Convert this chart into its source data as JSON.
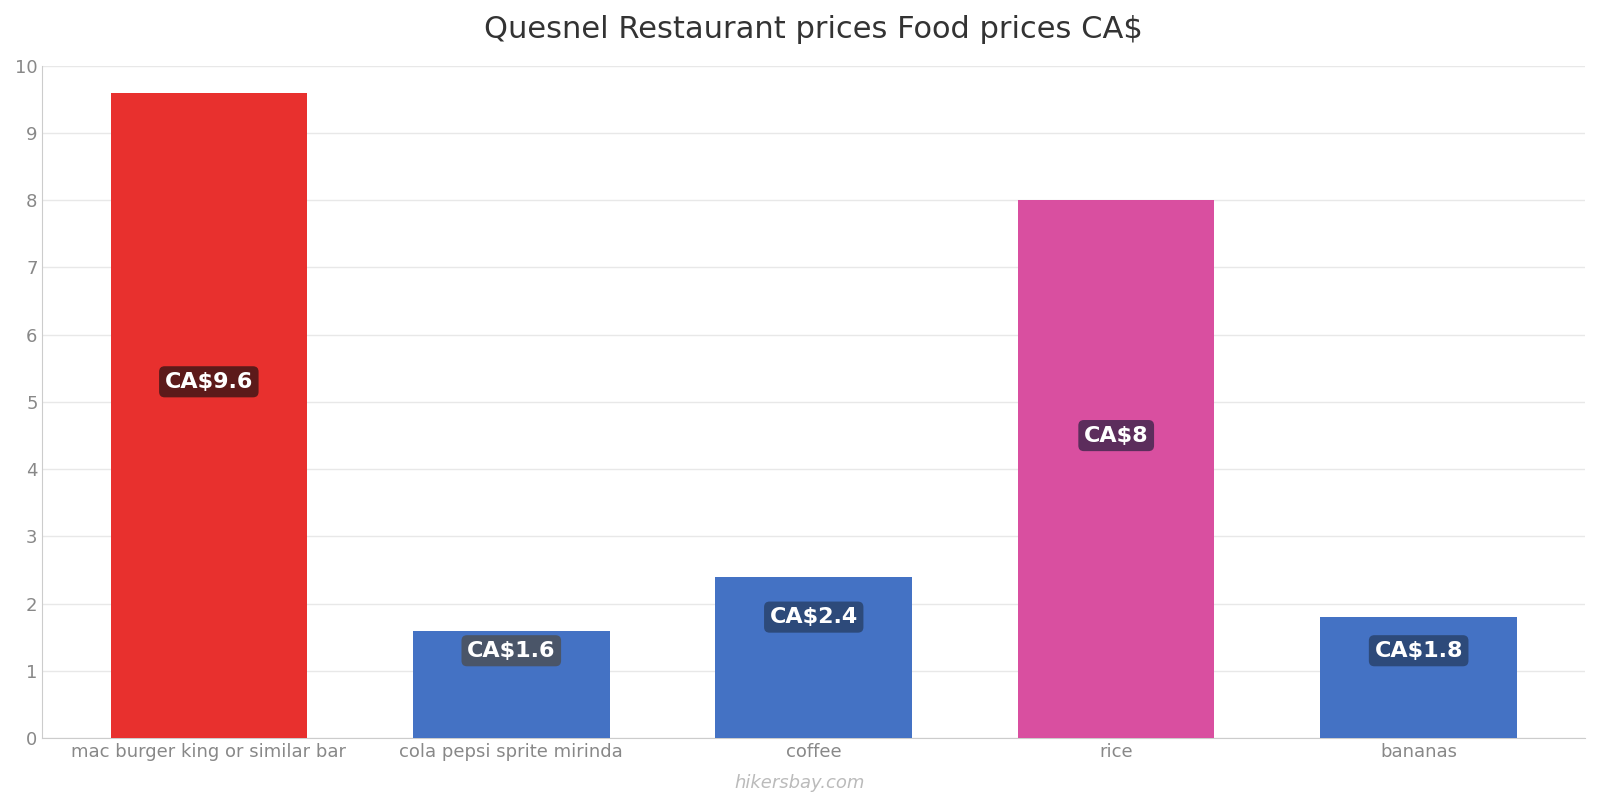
{
  "title": "Quesnel Restaurant prices Food prices CA$",
  "categories": [
    "mac burger king or similar bar",
    "cola pepsi sprite mirinda",
    "coffee",
    "rice",
    "bananas"
  ],
  "values": [
    9.6,
    1.6,
    2.4,
    8.0,
    1.8
  ],
  "labels": [
    "CA$9.6",
    "CA$1.6",
    "CA$2.4",
    "CA$8",
    "CA$1.8"
  ],
  "bar_colors": [
    "#e8302e",
    "#4472c4",
    "#4472c4",
    "#d94fa0",
    "#4472c4"
  ],
  "label_bg_colors": [
    "#5c1a1a",
    "#3d4f6e",
    "#2d4a7a",
    "#5c2d5c",
    "#2d4a7a"
  ],
  "label_bg_colors_small": [
    "#5c1a1a",
    "#4a5568",
    "#2d4a7a",
    "#5c2d5c",
    "#2d4a7a"
  ],
  "ylim": [
    0,
    10
  ],
  "yticks": [
    0,
    1,
    2,
    3,
    4,
    5,
    6,
    7,
    8,
    9,
    10
  ],
  "title_fontsize": 22,
  "label_fontsize": 16,
  "tick_fontsize": 13,
  "watermark": "hikersbay.com",
  "background_color": "#ffffff",
  "grid_color": "#e8e8e8",
  "label_y_positions": [
    5.3,
    1.3,
    1.8,
    4.5,
    1.3
  ],
  "bar_width": 0.65
}
